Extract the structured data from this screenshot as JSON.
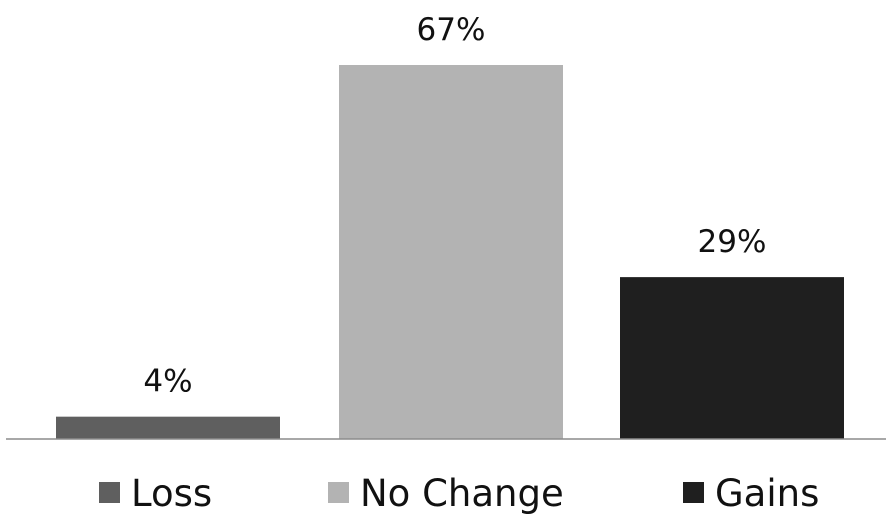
{
  "chart_data": {
    "type": "bar",
    "categories": [
      "Loss",
      "No Change",
      "Gains"
    ],
    "values": [
      4,
      67,
      29
    ],
    "value_labels": [
      "4%",
      "67%",
      "29%"
    ],
    "colors": [
      "#5f5f5f",
      "#b3b3b3",
      "#1f1f1f"
    ],
    "title": "",
    "xlabel": "",
    "ylabel": "",
    "unit": "%",
    "ylim": [
      0,
      67
    ],
    "grid": false,
    "legend": {
      "position": "bottom",
      "entries": [
        "Loss",
        "No Change",
        "Gains"
      ]
    }
  }
}
